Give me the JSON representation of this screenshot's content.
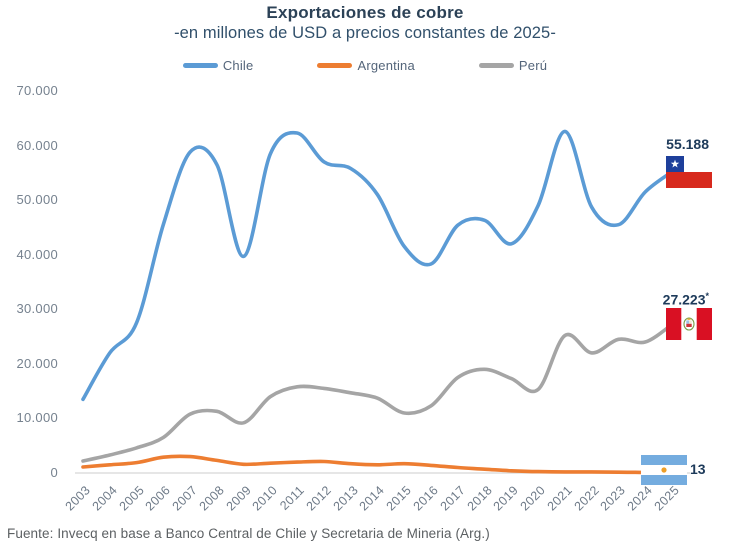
{
  "title": "Exportaciones de cobre",
  "subtitle": "-en millones de USD a precios constantes de 2025-",
  "footer": "Fuente: Invecq en base a Banco Central de Chile y Secretaria de Mineria (Arg.)",
  "colors": {
    "chile": "#5B9BD5",
    "argentina": "#ED7D31",
    "peru": "#A5A5A5",
    "axis_line": "#d6d6d6",
    "axis_labels": "#76828f",
    "end_labels": "#1d3a5a",
    "title_text": "#2c4257"
  },
  "legend": [
    {
      "id": "chile",
      "label": "Chile"
    },
    {
      "id": "argentina",
      "label": "Argentina"
    },
    {
      "id": "peru",
      "label": "Perú"
    }
  ],
  "chart_data": {
    "type": "line",
    "smooth": true,
    "grid": false,
    "legend_position": "top",
    "x": [
      "2003",
      "2004",
      "2005",
      "2006",
      "2007",
      "2008",
      "2009",
      "2010",
      "2011",
      "2012",
      "2013",
      "2014",
      "2015",
      "2016",
      "2017",
      "2018",
      "2019",
      "2020",
      "2021",
      "2022",
      "2023",
      "2024",
      "2025"
    ],
    "ylim": [
      0,
      70000
    ],
    "yticks": [
      {
        "value": 0,
        "label": "0"
      },
      {
        "value": 10000,
        "label": "10.000"
      },
      {
        "value": 20000,
        "label": "20.000"
      },
      {
        "value": 30000,
        "label": "30.000"
      },
      {
        "value": 40000,
        "label": "40.000"
      },
      {
        "value": 50000,
        "label": "50.000"
      },
      {
        "value": 60000,
        "label": "60.000"
      },
      {
        "value": 70000,
        "label": "70.000"
      }
    ],
    "series": [
      {
        "id": "chile",
        "name": "Chile",
        "color": "#5B9BD5",
        "values": [
          13500,
          22000,
          27500,
          45500,
          58800,
          56500,
          39700,
          58500,
          62300,
          57000,
          55800,
          51000,
          41500,
          38300,
          45400,
          46300,
          42000,
          49000,
          62600,
          48700,
          45500,
          51500,
          55188
        ],
        "end_label": {
          "text": "55.188",
          "sup": "",
          "flag": "chile-flag",
          "position": "top"
        }
      },
      {
        "id": "argentina",
        "name": "Argentina",
        "color": "#ED7D31",
        "values": [
          1100,
          1500,
          1900,
          2900,
          3000,
          2300,
          1600,
          1800,
          2000,
          2100,
          1700,
          1500,
          1700,
          1400,
          1000,
          700,
          400,
          250,
          200,
          200,
          150,
          100,
          13
        ],
        "end_label": {
          "text": "13",
          "sup": "",
          "flag": "argentina-flag",
          "position": "right"
        }
      },
      {
        "id": "peru",
        "name": "Perú",
        "color": "#A5A5A5",
        "values": [
          2200,
          3300,
          4600,
          6500,
          10800,
          11300,
          9200,
          14000,
          15800,
          15500,
          14700,
          13700,
          11000,
          12300,
          17500,
          19000,
          17300,
          15300,
          25200,
          22000,
          24500,
          24000,
          27223
        ],
        "end_label": {
          "text": "27.223",
          "sup": "*",
          "flag": "peru-flag",
          "position": "top"
        }
      }
    ]
  }
}
